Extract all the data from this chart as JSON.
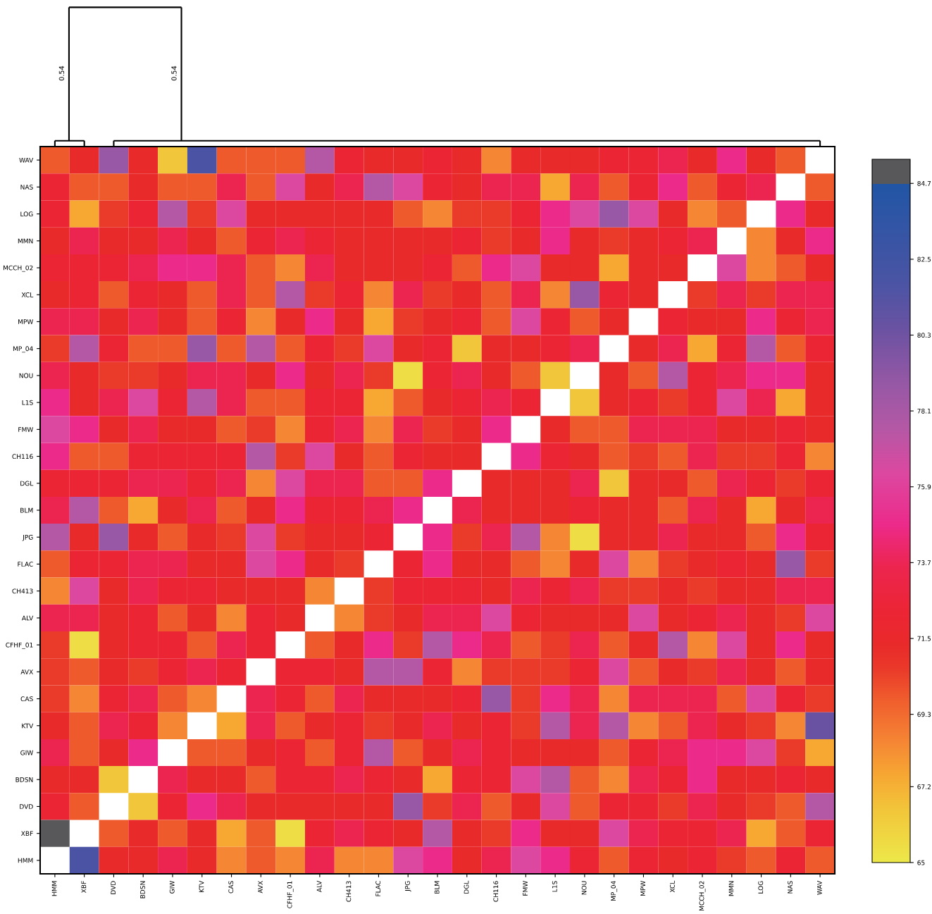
{
  "chart_data": {
    "type": "heatmap",
    "categories": [
      "HMM",
      "XBF",
      "DVD",
      "BDSN",
      "GIW",
      "KTV",
      "CAS",
      "AVX",
      "CFHF_01",
      "ALV",
      "CH413",
      "FLAC",
      "JPG",
      "BLM",
      "DGL",
      "CH116",
      "FMW",
      "L1S",
      "NOU",
      "MP_04",
      "MPW",
      "XCL",
      "MCCH_02",
      "MMN",
      "LOG",
      "NAS",
      "WAV"
    ],
    "y_categories": [
      "WAV",
      "NAS",
      "LOG",
      "MMN",
      "MCCH_02",
      "XCL",
      "MPW",
      "MP_04",
      "NOU",
      "L1S",
      "FMW",
      "CH116",
      "DGL",
      "BLM",
      "JPG",
      "FLAC",
      "CH413",
      "ALV",
      "CFHF_01",
      "AVX",
      "CAS",
      "KTV",
      "GIW",
      "BDSN",
      "DVD",
      "XBF",
      "HMM"
    ],
    "cells": [
      [
        69.8,
        71.3,
        78.8,
        71.3,
        66.5,
        81.8,
        69.8,
        69.8,
        69.8,
        77.6,
        72.3,
        71.3,
        71.3,
        72.3,
        71.3,
        68.5,
        71.3,
        71.3,
        71.3,
        72.3,
        72.3,
        73.6,
        71.3,
        74.8,
        71.3,
        69.8,
        null
      ],
      [
        72.3,
        69.8,
        69.8,
        71.3,
        69.8,
        69.8,
        73.6,
        69.8,
        76.3,
        71.3,
        73.6,
        77.6,
        76.3,
        72.3,
        71.3,
        73.6,
        73.6,
        67.5,
        73.6,
        69.8,
        72.3,
        74.8,
        69.8,
        72.3,
        73.6,
        null,
        69.8
      ],
      [
        72.3,
        67.5,
        70.6,
        72.3,
        77.6,
        70.6,
        76.3,
        71.3,
        71.3,
        71.3,
        71.3,
        71.3,
        69.8,
        68.5,
        70.6,
        70.6,
        72.3,
        74.8,
        76.3,
        78.8,
        76.3,
        71.3,
        68.5,
        69.8,
        null,
        74.8,
        71.3
      ],
      [
        71.3,
        73.6,
        71.3,
        71.3,
        73.6,
        71.3,
        69.8,
        72.3,
        73.6,
        72.3,
        71.3,
        71.3,
        71.3,
        71.3,
        72.3,
        70.6,
        71.3,
        74.8,
        71.3,
        70.6,
        71.3,
        72.3,
        73.6,
        null,
        68.5,
        71.3,
        74.8
      ],
      [
        72.3,
        72.3,
        72.3,
        73.6,
        74.8,
        74.8,
        73.6,
        69.8,
        68.5,
        73.6,
        71.3,
        71.3,
        71.3,
        72.3,
        69.8,
        74.8,
        76.3,
        71.3,
        71.3,
        67.5,
        71.3,
        71.3,
        null,
        76.3,
        68.5,
        69.8,
        71.3
      ],
      [
        71.3,
        72.3,
        69.8,
        72.3,
        71.3,
        69.8,
        73.6,
        69.8,
        77.6,
        70.6,
        72.3,
        68.5,
        73.6,
        70.6,
        71.3,
        69.8,
        73.6,
        68.5,
        78.8,
        72.3,
        71.3,
        null,
        70.6,
        73.6,
        70.6,
        73.6,
        73.6
      ],
      [
        73.6,
        73.6,
        71.3,
        73.6,
        71.3,
        69.8,
        72.3,
        68.5,
        71.3,
        74.8,
        71.3,
        67.5,
        70.6,
        71.3,
        72.3,
        69.8,
        76.3,
        72.3,
        69.8,
        71.3,
        null,
        72.3,
        71.3,
        71.3,
        74.8,
        72.3,
        73.6
      ],
      [
        70.6,
        77.6,
        72.3,
        69.8,
        69.8,
        78.8,
        69.8,
        77.6,
        69.8,
        72.3,
        70.6,
        76.3,
        71.3,
        72.3,
        66.5,
        71.3,
        71.3,
        72.3,
        73.6,
        null,
        71.3,
        73.6,
        67.5,
        72.3,
        77.6,
        69.8,
        72.3
      ],
      [
        73.6,
        71.3,
        70.6,
        70.6,
        71.3,
        73.6,
        73.6,
        71.3,
        74.8,
        71.3,
        73.6,
        70.6,
        65.5,
        72.3,
        73.6,
        71.3,
        69.8,
        66.5,
        null,
        71.3,
        69.8,
        77.6,
        72.3,
        73.6,
        74.8,
        74.8,
        71.3
      ],
      [
        74.8,
        71.3,
        73.6,
        76.3,
        72.3,
        77.6,
        73.6,
        69.8,
        69.8,
        72.3,
        72.3,
        67.5,
        69.8,
        71.3,
        72.3,
        73.6,
        72.3,
        null,
        66.5,
        71.3,
        72.3,
        70.6,
        72.3,
        76.3,
        73.6,
        67.5,
        71.3
      ],
      [
        76.3,
        74.8,
        71.3,
        73.6,
        71.3,
        71.3,
        69.8,
        70.6,
        68.5,
        72.3,
        73.6,
        68.5,
        73.6,
        70.6,
        71.3,
        74.8,
        null,
        71.3,
        69.8,
        69.8,
        73.6,
        73.6,
        73.6,
        71.3,
        71.3,
        72.3,
        71.3
      ],
      [
        74.8,
        69.8,
        69.8,
        72.3,
        72.3,
        72.3,
        72.3,
        77.6,
        70.6,
        76.3,
        71.3,
        69.8,
        72.3,
        71.3,
        71.3,
        null,
        74.8,
        72.3,
        71.3,
        69.8,
        70.6,
        69.8,
        73.6,
        70.6,
        70.6,
        72.3,
        68.5
      ],
      [
        72.3,
        72.3,
        72.3,
        73.6,
        73.6,
        72.3,
        73.6,
        68.5,
        76.3,
        73.6,
        73.6,
        69.8,
        69.8,
        74.8,
        null,
        71.3,
        71.3,
        71.3,
        73.6,
        66.5,
        71.3,
        71.3,
        69.8,
        73.6,
        72.3,
        70.6,
        72.3
      ],
      [
        73.6,
        77.6,
        69.8,
        67.5,
        71.3,
        73.6,
        69.8,
        71.3,
        74.8,
        72.3,
        72.3,
        73.6,
        74.8,
        null,
        73.6,
        71.3,
        71.3,
        71.3,
        72.3,
        71.3,
        71.3,
        69.8,
        73.6,
        71.3,
        67.5,
        71.3,
        73.6
      ],
      [
        77.6,
        71.3,
        78.8,
        71.3,
        69.8,
        71.3,
        70.6,
        76.3,
        70.6,
        71.3,
        71.3,
        72.3,
        null,
        74.8,
        70.6,
        73.6,
        77.6,
        68.5,
        65.5,
        71.3,
        71.3,
        73.6,
        71.3,
        71.3,
        69.8,
        74.8,
        72.3
      ],
      [
        69.8,
        72.3,
        72.3,
        73.6,
        73.6,
        71.3,
        71.3,
        76.3,
        74.8,
        71.3,
        70.6,
        null,
        72.3,
        74.8,
        71.3,
        71.3,
        69.8,
        68.5,
        71.3,
        76.3,
        68.5,
        70.6,
        71.3,
        72.3,
        71.3,
        78.8,
        70.6
      ],
      [
        68.5,
        76.3,
        71.3,
        73.6,
        72.3,
        72.3,
        71.3,
        71.3,
        71.3,
        68.5,
        null,
        70.6,
        72.3,
        72.3,
        72.3,
        71.3,
        73.6,
        72.3,
        73.6,
        70.6,
        70.6,
        71.3,
        70.6,
        71.3,
        71.3,
        73.6,
        73.6
      ],
      [
        73.6,
        73.6,
        71.3,
        72.3,
        69.8,
        71.3,
        68.5,
        72.3,
        71.3,
        null,
        68.5,
        70.6,
        71.3,
        73.6,
        73.6,
        76.3,
        72.3,
        71.3,
        71.3,
        71.3,
        76.3,
        71.3,
        72.3,
        73.6,
        71.3,
        70.6,
        76.3
      ],
      [
        70.6,
        65.5,
        71.3,
        72.3,
        72.3,
        69.8,
        73.6,
        72.3,
        null,
        69.8,
        71.3,
        74.8,
        70.6,
        77.6,
        74.8,
        73.6,
        69.8,
        70.6,
        73.6,
        69.8,
        71.3,
        77.6,
        68.5,
        76.3,
        71.3,
        74.8,
        71.3
      ],
      [
        70.6,
        69.8,
        71.3,
        70.6,
        72.3,
        73.6,
        72.3,
        null,
        72.3,
        72.3,
        71.3,
        77.6,
        77.6,
        72.3,
        68.5,
        70.6,
        70.6,
        70.6,
        72.3,
        76.3,
        69.8,
        71.3,
        70.6,
        73.6,
        71.3,
        69.8,
        71.3
      ],
      [
        70.6,
        68.5,
        72.3,
        73.6,
        69.8,
        68.5,
        null,
        73.6,
        72.3,
        69.8,
        73.6,
        71.3,
        71.3,
        71.3,
        72.3,
        78.8,
        70.6,
        74.8,
        73.6,
        68.5,
        73.6,
        73.6,
        73.6,
        69.8,
        76.3,
        72.3,
        70.6
      ],
      [
        71.3,
        69.8,
        73.6,
        72.3,
        68.5,
        null,
        67.5,
        73.6,
        69.8,
        71.3,
        72.3,
        70.6,
        71.3,
        73.6,
        71.3,
        72.3,
        70.6,
        77.6,
        73.6,
        77.6,
        68.5,
        69.8,
        73.6,
        71.3,
        70.6,
        68.5,
        80.5
      ],
      [
        73.6,
        69.8,
        71.3,
        74.8,
        null,
        69.8,
        69.8,
        71.3,
        72.3,
        69.8,
        72.3,
        77.6,
        69.8,
        71.3,
        73.6,
        72.3,
        71.3,
        71.3,
        71.3,
        69.8,
        72.3,
        73.6,
        74.8,
        74.8,
        76.3,
        70.6,
        67.5
      ],
      [
        71.3,
        71.3,
        66.5,
        null,
        73.6,
        71.3,
        71.3,
        69.8,
        72.3,
        72.3,
        73.6,
        72.3,
        71.3,
        67.5,
        72.3,
        72.3,
        76.3,
        77.6,
        69.8,
        68.5,
        73.6,
        72.3,
        74.8,
        71.3,
        71.3,
        72.3,
        71.3
      ],
      [
        72.3,
        69.8,
        null,
        66.5,
        72.3,
        74.8,
        73.6,
        71.3,
        71.3,
        71.3,
        71.3,
        71.3,
        78.8,
        70.6,
        73.6,
        69.8,
        71.3,
        76.3,
        69.8,
        72.3,
        72.3,
        70.6,
        73.6,
        71.3,
        70.6,
        69.8,
        77.6
      ],
      [
        85.0,
        null,
        69.8,
        71.3,
        69.8,
        71.3,
        67.5,
        69.8,
        65.5,
        72.3,
        73.6,
        72.3,
        71.3,
        77.6,
        71.3,
        70.6,
        74.8,
        71.3,
        71.3,
        76.3,
        73.6,
        72.3,
        72.3,
        73.6,
        67.5,
        69.8,
        72.3
      ],
      [
        null,
        81.8,
        71.3,
        71.3,
        73.6,
        71.3,
        68.5,
        69.8,
        68.5,
        73.6,
        68.5,
        68.5,
        76.3,
        74.8,
        71.3,
        73.6,
        76.3,
        74.8,
        72.3,
        69.8,
        72.3,
        71.3,
        72.3,
        70.6,
        69.8,
        72.3,
        69.8
      ]
    ],
    "clim": [
      65,
      85.4
    ],
    "cticks": [
      65,
      67.2,
      69.3,
      71.5,
      73.7,
      75.9,
      78.1,
      80.3,
      82.5,
      84.7
    ],
    "annotations": [
      "0.54",
      "0.54"
    ]
  }
}
